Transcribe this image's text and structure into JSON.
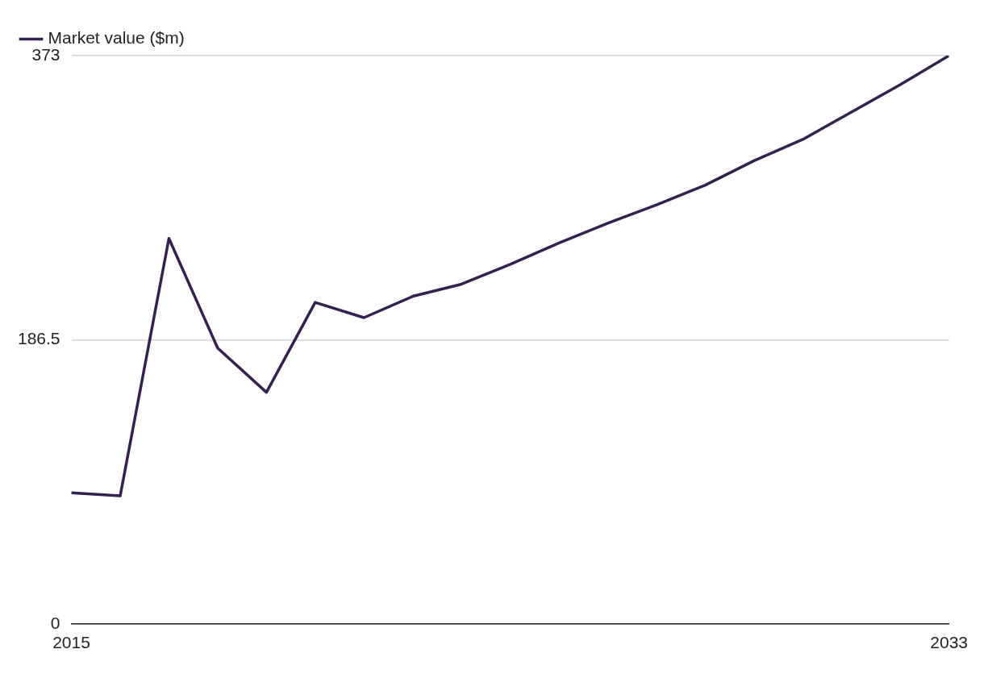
{
  "chart_data": {
    "type": "line",
    "x": [
      2015,
      2016,
      2017,
      2018,
      2019,
      2020,
      2021,
      2022,
      2023,
      2024,
      2025,
      2026,
      2027,
      2028,
      2029,
      2030,
      2031,
      2032,
      2033
    ],
    "series": [
      {
        "name": "Market value ($m)",
        "color": "#35214f",
        "values": [
          86,
          84,
          253,
          181,
          152,
          211,
          201,
          215,
          223,
          236,
          250,
          263,
          275,
          288,
          304,
          318,
          336,
          354,
          373
        ]
      }
    ],
    "xlim": [
      2015,
      2033
    ],
    "xticks": [
      2015,
      2033
    ],
    "ylim": [
      0,
      373
    ],
    "yticks": [
      0,
      186.5,
      373
    ],
    "grid": "y",
    "legend": "top left",
    "marker": "none",
    "line_style": "solid"
  }
}
